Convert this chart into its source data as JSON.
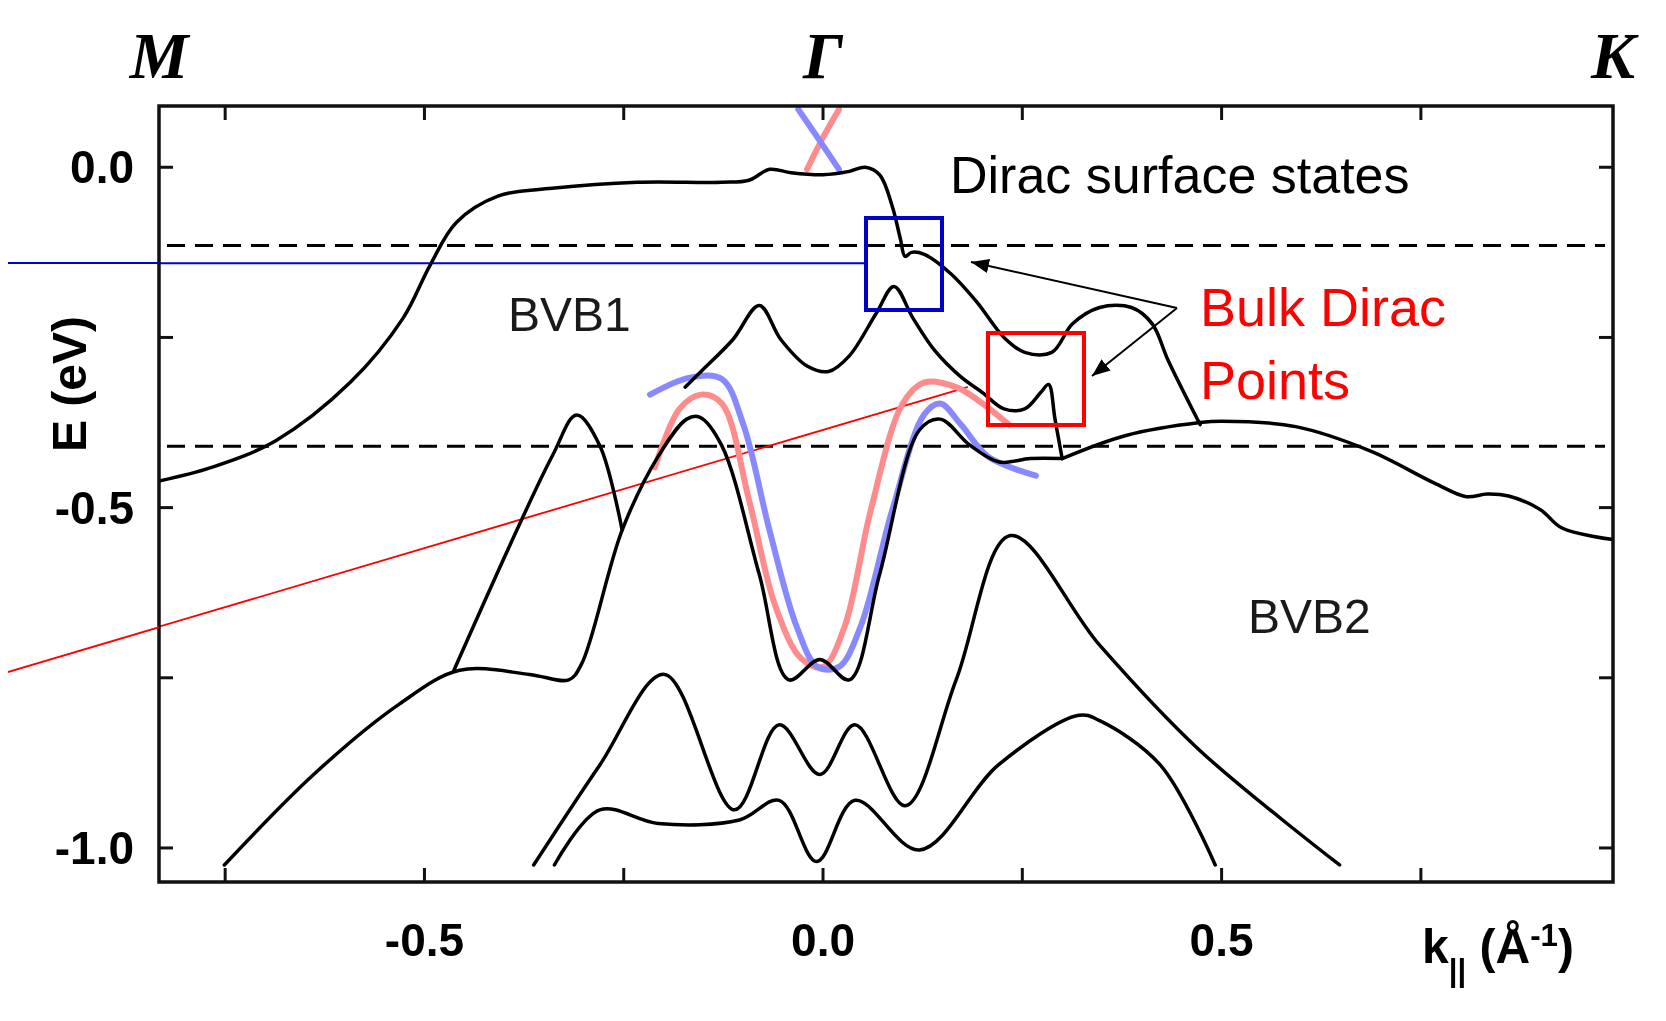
{
  "chart_data": {
    "type": "line",
    "xlabel": "k$_{||}$ (Å$^{-1}$)",
    "ylabel": "E (eV)",
    "xlim": [
      -0.833,
      0.991
    ],
    "ylim": [
      -1.05,
      0.09
    ],
    "xticks": [
      {
        "value": -0.75,
        "label": null
      },
      {
        "value": -0.5,
        "label": "-0.5"
      },
      {
        "value": -0.25,
        "label": null
      },
      {
        "value": 0,
        "label": "0.0"
      },
      {
        "value": 0.25,
        "label": null
      },
      {
        "value": 0.5,
        "label": "0.5"
      },
      {
        "value": 0.75,
        "label": null
      }
    ],
    "yticks": [
      {
        "value": 0,
        "label": "0.0"
      },
      {
        "value": -0.25,
        "label": null
      },
      {
        "value": -0.5,
        "label": "-0.5"
      },
      {
        "value": -0.75,
        "label": null
      },
      {
        "value": -1,
        "label": "-1.0"
      }
    ],
    "grid": false,
    "marker": "none",
    "line_style": "solid",
    "ref_lines": [
      {
        "axis": "y",
        "value": -0.115,
        "color": "#000000",
        "line_style": "dashed"
      },
      {
        "axis": "y",
        "value": -0.41,
        "color": "#000000",
        "line_style": "dashed"
      }
    ],
    "annotations": [
      "Dirac surface states",
      "BVB1",
      "BVB2",
      "Bulk Dirac Points",
      "M",
      "Γ",
      "K"
    ],
    "series": [
      {
        "color": "#000000",
        "x": [
          -0.833,
          -0.767,
          -0.687,
          -0.593,
          -0.527,
          -0.493,
          -0.46,
          -0.407,
          -0.34,
          -0.233,
          -0.127,
          -0.093,
          -0.067,
          -0.04,
          0,
          0.033,
          0.053,
          0.071,
          0.087,
          0.097,
          0.103,
          0.111,
          0.127,
          0.16,
          0.193,
          0.227,
          0.253,
          0.287,
          0.313,
          0.347,
          0.387,
          0.413,
          0.433,
          0.473
        ],
        "values": [
          -0.461,
          -0.441,
          -0.402,
          -0.316,
          -0.222,
          -0.144,
          -0.081,
          -0.042,
          -0.031,
          -0.022,
          -0.022,
          -0.019,
          -0.003,
          -0.008,
          -0.011,
          -0.006,
          0,
          -0.011,
          -0.058,
          -0.105,
          -0.131,
          -0.125,
          -0.128,
          -0.156,
          -0.198,
          -0.25,
          -0.272,
          -0.272,
          -0.23,
          -0.206,
          -0.206,
          -0.23,
          -0.284,
          -0.378
        ]
      },
      {
        "color": "#000000",
        "x": [
          0.3,
          0.38,
          0.473,
          0.5,
          0.593,
          0.687,
          0.767,
          0.807,
          0.833,
          0.86,
          0.9,
          0.927,
          0.991
        ],
        "values": [
          -0.428,
          -0.394,
          -0.375,
          -0.373,
          -0.381,
          -0.417,
          -0.464,
          -0.484,
          -0.48,
          -0.483,
          -0.503,
          -0.53,
          -0.547
        ]
      },
      {
        "color": "#000000",
        "x": [
          -0.173,
          -0.153,
          -0.113,
          -0.08,
          -0.053,
          -0.02,
          0.007,
          0.033,
          0.067,
          0.089,
          0.113,
          0.14,
          0.173,
          0.2,
          0.227,
          0.253,
          0.273,
          0.283,
          0.291,
          0.3
        ],
        "values": [
          -0.323,
          -0.3,
          -0.253,
          -0.203,
          -0.253,
          -0.292,
          -0.3,
          -0.277,
          -0.214,
          -0.175,
          -0.222,
          -0.269,
          -0.308,
          -0.331,
          -0.355,
          -0.355,
          -0.331,
          -0.319,
          -0.37,
          -0.428
        ]
      },
      {
        "color": "#000000",
        "x": [
          -0.463,
          -0.34,
          -0.309,
          -0.28,
          -0.252
        ],
        "values": [
          -0.739,
          -0.425,
          -0.364,
          -0.409,
          -0.533
        ]
      },
      {
        "color": "#000000",
        "x": [
          -0.751,
          -0.639,
          -0.532,
          -0.456,
          -0.368,
          -0.319,
          -0.303,
          -0.252,
          -0.207,
          -0.171,
          -0.155,
          -0.127,
          -0.08,
          -0.043,
          -0.004,
          0.033,
          0.071,
          0.121,
          0.147,
          0.184,
          0.221,
          0.26,
          0.3
        ],
        "values": [
          -1.025,
          -0.892,
          -0.789,
          -0.739,
          -0.745,
          -0.753,
          -0.73,
          -0.533,
          -0.425,
          -0.37,
          -0.367,
          -0.409,
          -0.598,
          -0.753,
          -0.723,
          -0.753,
          -0.598,
          -0.386,
          -0.37,
          -0.408,
          -0.433,
          -0.428,
          -0.428
        ]
      },
      {
        "color": "#000000",
        "x": [
          -0.363,
          -0.28,
          -0.199,
          -0.111,
          -0.055,
          -0.004,
          0.04,
          0.103,
          0.167,
          0.235,
          0.347,
          0.472,
          0.648
        ],
        "values": [
          -1.025,
          -0.878,
          -0.745,
          -0.944,
          -0.819,
          -0.892,
          -0.819,
          -0.938,
          -0.753,
          -0.541,
          -0.702,
          -0.856,
          -1.025
        ]
      },
      {
        "color": "#000000",
        "x": [
          -0.337,
          -0.28,
          -0.207,
          -0.105,
          -0.055,
          -0.008,
          0.04,
          0.121,
          0.22,
          0.321,
          0.347,
          0.423,
          0.492
        ],
        "values": [
          -1.025,
          -0.944,
          -0.964,
          -0.959,
          -0.93,
          -1.02,
          -0.93,
          -1.003,
          -0.878,
          -0.805,
          -0.813,
          -0.878,
          -1.025
        ]
      },
      {
        "color": "#8888ff",
        "x": [
          -0.217,
          -0.167,
          -0.127,
          -0.1,
          -0.067,
          -0.033,
          -0.007,
          0.02,
          0.047,
          0.087,
          0.127,
          0.147,
          0.173,
          0.207,
          0.267
        ],
        "values": [
          -0.334,
          -0.309,
          -0.311,
          -0.378,
          -0.534,
          -0.675,
          -0.734,
          -0.734,
          -0.675,
          -0.503,
          -0.363,
          -0.347,
          -0.378,
          -0.425,
          -0.453
        ]
      },
      {
        "color": "#8888ff",
        "x": [
          -0.031,
          -0.007,
          0.02
        ],
        "values": [
          0.085,
          0.044,
          -0.003
        ]
      },
      {
        "color": "#ff8c8c",
        "x": [
          -0.211,
          -0.18,
          -0.153,
          -0.127,
          -0.093,
          -0.06,
          -0.027,
          0,
          0.027,
          0.06,
          0.1,
          0.127,
          0.167,
          0.2,
          0.233
        ],
        "values": [
          -0.441,
          -0.355,
          -0.334,
          -0.347,
          -0.488,
          -0.644,
          -0.722,
          -0.734,
          -0.675,
          -0.503,
          -0.347,
          -0.316,
          -0.323,
          -0.347,
          -0.378
        ]
      },
      {
        "color": "#ff8c8c",
        "x": [
          0.02,
          0,
          -0.02
        ],
        "values": [
          0.085,
          0.044,
          -0.003
        ]
      },
      {
        "color": "#0000dd",
        "x": [
          -0.833,
          0.054
        ],
        "values": [
          -0.141,
          -0.141
        ]
      },
      {
        "color": "#ff0000",
        "x": [
          -0.833,
          0.181
        ],
        "values": [
          -0.675,
          -0.323
        ]
      }
    ]
  }
}
